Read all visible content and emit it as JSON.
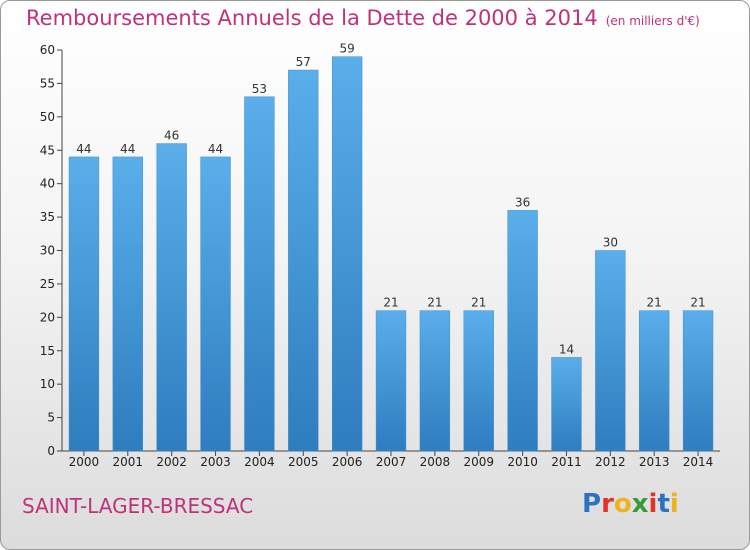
{
  "title": "Remboursements Annuels de la Dette de 2000 à 2014",
  "unit": "(en milliers d'€)",
  "commune": "SAINT-LAGER-BRESSAC",
  "logo": "Proxiti",
  "colors": {
    "title": "#c0317c",
    "bar_light": "#5aaeea",
    "bar_dark": "#2e7dbf",
    "logo_letters": [
      "#2b72c2",
      "#e0342b",
      "#f0b21c",
      "#3a9a3a",
      "#e0342b",
      "#2b72c2",
      "#f0b21c"
    ]
  },
  "chart_data": {
    "type": "bar",
    "categories": [
      "2000",
      "2001",
      "2002",
      "2003",
      "2004",
      "2005",
      "2006",
      "2007",
      "2008",
      "2009",
      "2010",
      "2011",
      "2012",
      "2013",
      "2014"
    ],
    "values": [
      44,
      44,
      46,
      44,
      53,
      57,
      59,
      21,
      21,
      21,
      36,
      14,
      30,
      21,
      21
    ],
    "ylim": [
      0,
      60
    ],
    "yticks": [
      0,
      5,
      10,
      15,
      20,
      25,
      30,
      35,
      40,
      45,
      50,
      55,
      60
    ],
    "grid": false,
    "data_labels": true
  }
}
